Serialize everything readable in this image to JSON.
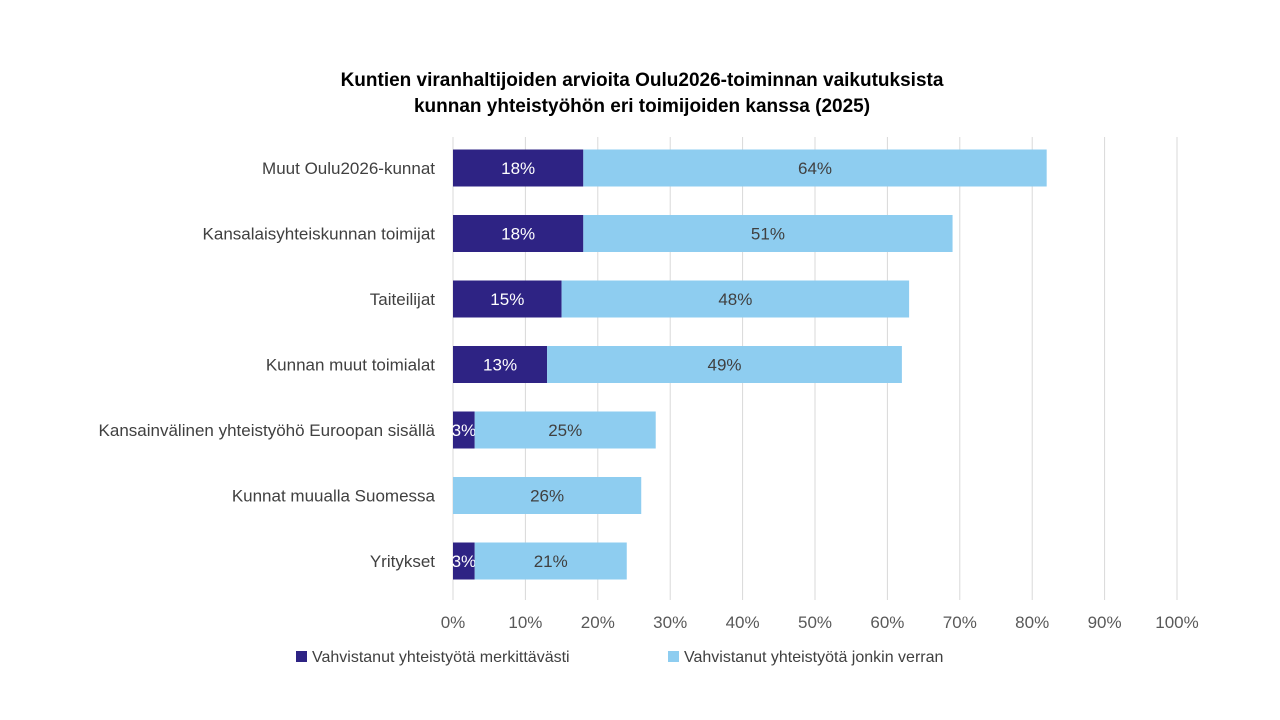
{
  "chart_data": {
    "type": "bar",
    "orientation": "horizontal",
    "stacked": true,
    "title_lines": [
      "Kuntien viranhaltijoiden arvioita Oulu2026-toiminnan vaikutuksista",
      "kunnan yhteistyöhön eri toimijoiden kanssa (2025)"
    ],
    "categories": [
      "Muut Oulu2026-kunnat",
      "Kansalaisyhteiskunnan toimijat",
      "Taiteilijat",
      "Kunnan muut toimialat",
      "Kansainvälinen yhteistyöhö Euroopan sisällä",
      "Kunnat muualla Suomessa",
      "Yritykset"
    ],
    "series": [
      {
        "name": "Vahvistanut yhteistyötä merkittävästi",
        "color": "#2e2384",
        "label_color": "#ffffff",
        "values": [
          18,
          18,
          15,
          13,
          3,
          0,
          3
        ],
        "labels": [
          "18%",
          "18%",
          "15%",
          "13%",
          "3%",
          "",
          "3%"
        ]
      },
      {
        "name": "Vahvistanut yhteistyötä jonkin verran",
        "color": "#8ecdf0",
        "label_color": "#404040",
        "values": [
          64,
          51,
          48,
          49,
          25,
          26,
          21
        ],
        "labels": [
          "64%",
          "51%",
          "48%",
          "49%",
          "25%",
          "26%",
          "21%"
        ]
      }
    ],
    "xlim": [
      0,
      100
    ],
    "xticks": [
      0,
      10,
      20,
      30,
      40,
      50,
      60,
      70,
      80,
      90,
      100
    ],
    "xtick_labels": [
      "0%",
      "10%",
      "20%",
      "30%",
      "40%",
      "50%",
      "60%",
      "70%",
      "80%",
      "90%",
      "100%"
    ],
    "grid": true,
    "legend_position": "bottom",
    "gridline_color": "#d9d9d9"
  }
}
